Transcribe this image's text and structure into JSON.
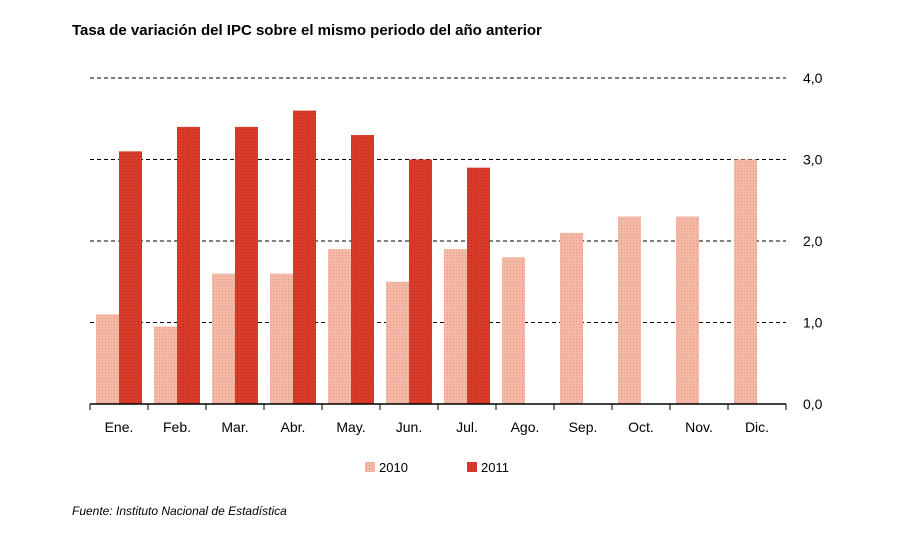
{
  "title": "Tasa de variación del IPC sobre el mismo periodo del año anterior",
  "source": "Fuente: Instituto Nacional de Estadística",
  "colors": {
    "series_2010": "#f4b9a6",
    "series_2011": "#d93b2b",
    "gridline": "#000000"
  },
  "chart_data": {
    "type": "bar",
    "title": "Tasa de variación del IPC sobre el mismo periodo del año anterior",
    "categories": [
      "Ene.",
      "Feb.",
      "Mar.",
      "Abr.",
      "May.",
      "Jun.",
      "Jul.",
      "Ago.",
      "Sep.",
      "Oct.",
      "Nov.",
      "Dic."
    ],
    "series": [
      {
        "name": "2010",
        "values": [
          1.1,
          0.95,
          1.6,
          1.6,
          1.9,
          1.5,
          1.9,
          1.8,
          2.1,
          2.3,
          2.3,
          3.0
        ]
      },
      {
        "name": "2011",
        "values": [
          3.1,
          3.4,
          3.4,
          3.6,
          3.3,
          3.0,
          2.9,
          null,
          null,
          null,
          null,
          null
        ]
      }
    ],
    "ylim": [
      0,
      4
    ],
    "yticks": [
      "0,0",
      "1,0",
      "2,0",
      "3,0",
      "4,0"
    ],
    "ytick_values": [
      0,
      1,
      2,
      3,
      4
    ],
    "y_axis_side": "right",
    "grid": "dashed horizontal",
    "legend": "bottom-center",
    "xlabel": "",
    "ylabel": ""
  }
}
